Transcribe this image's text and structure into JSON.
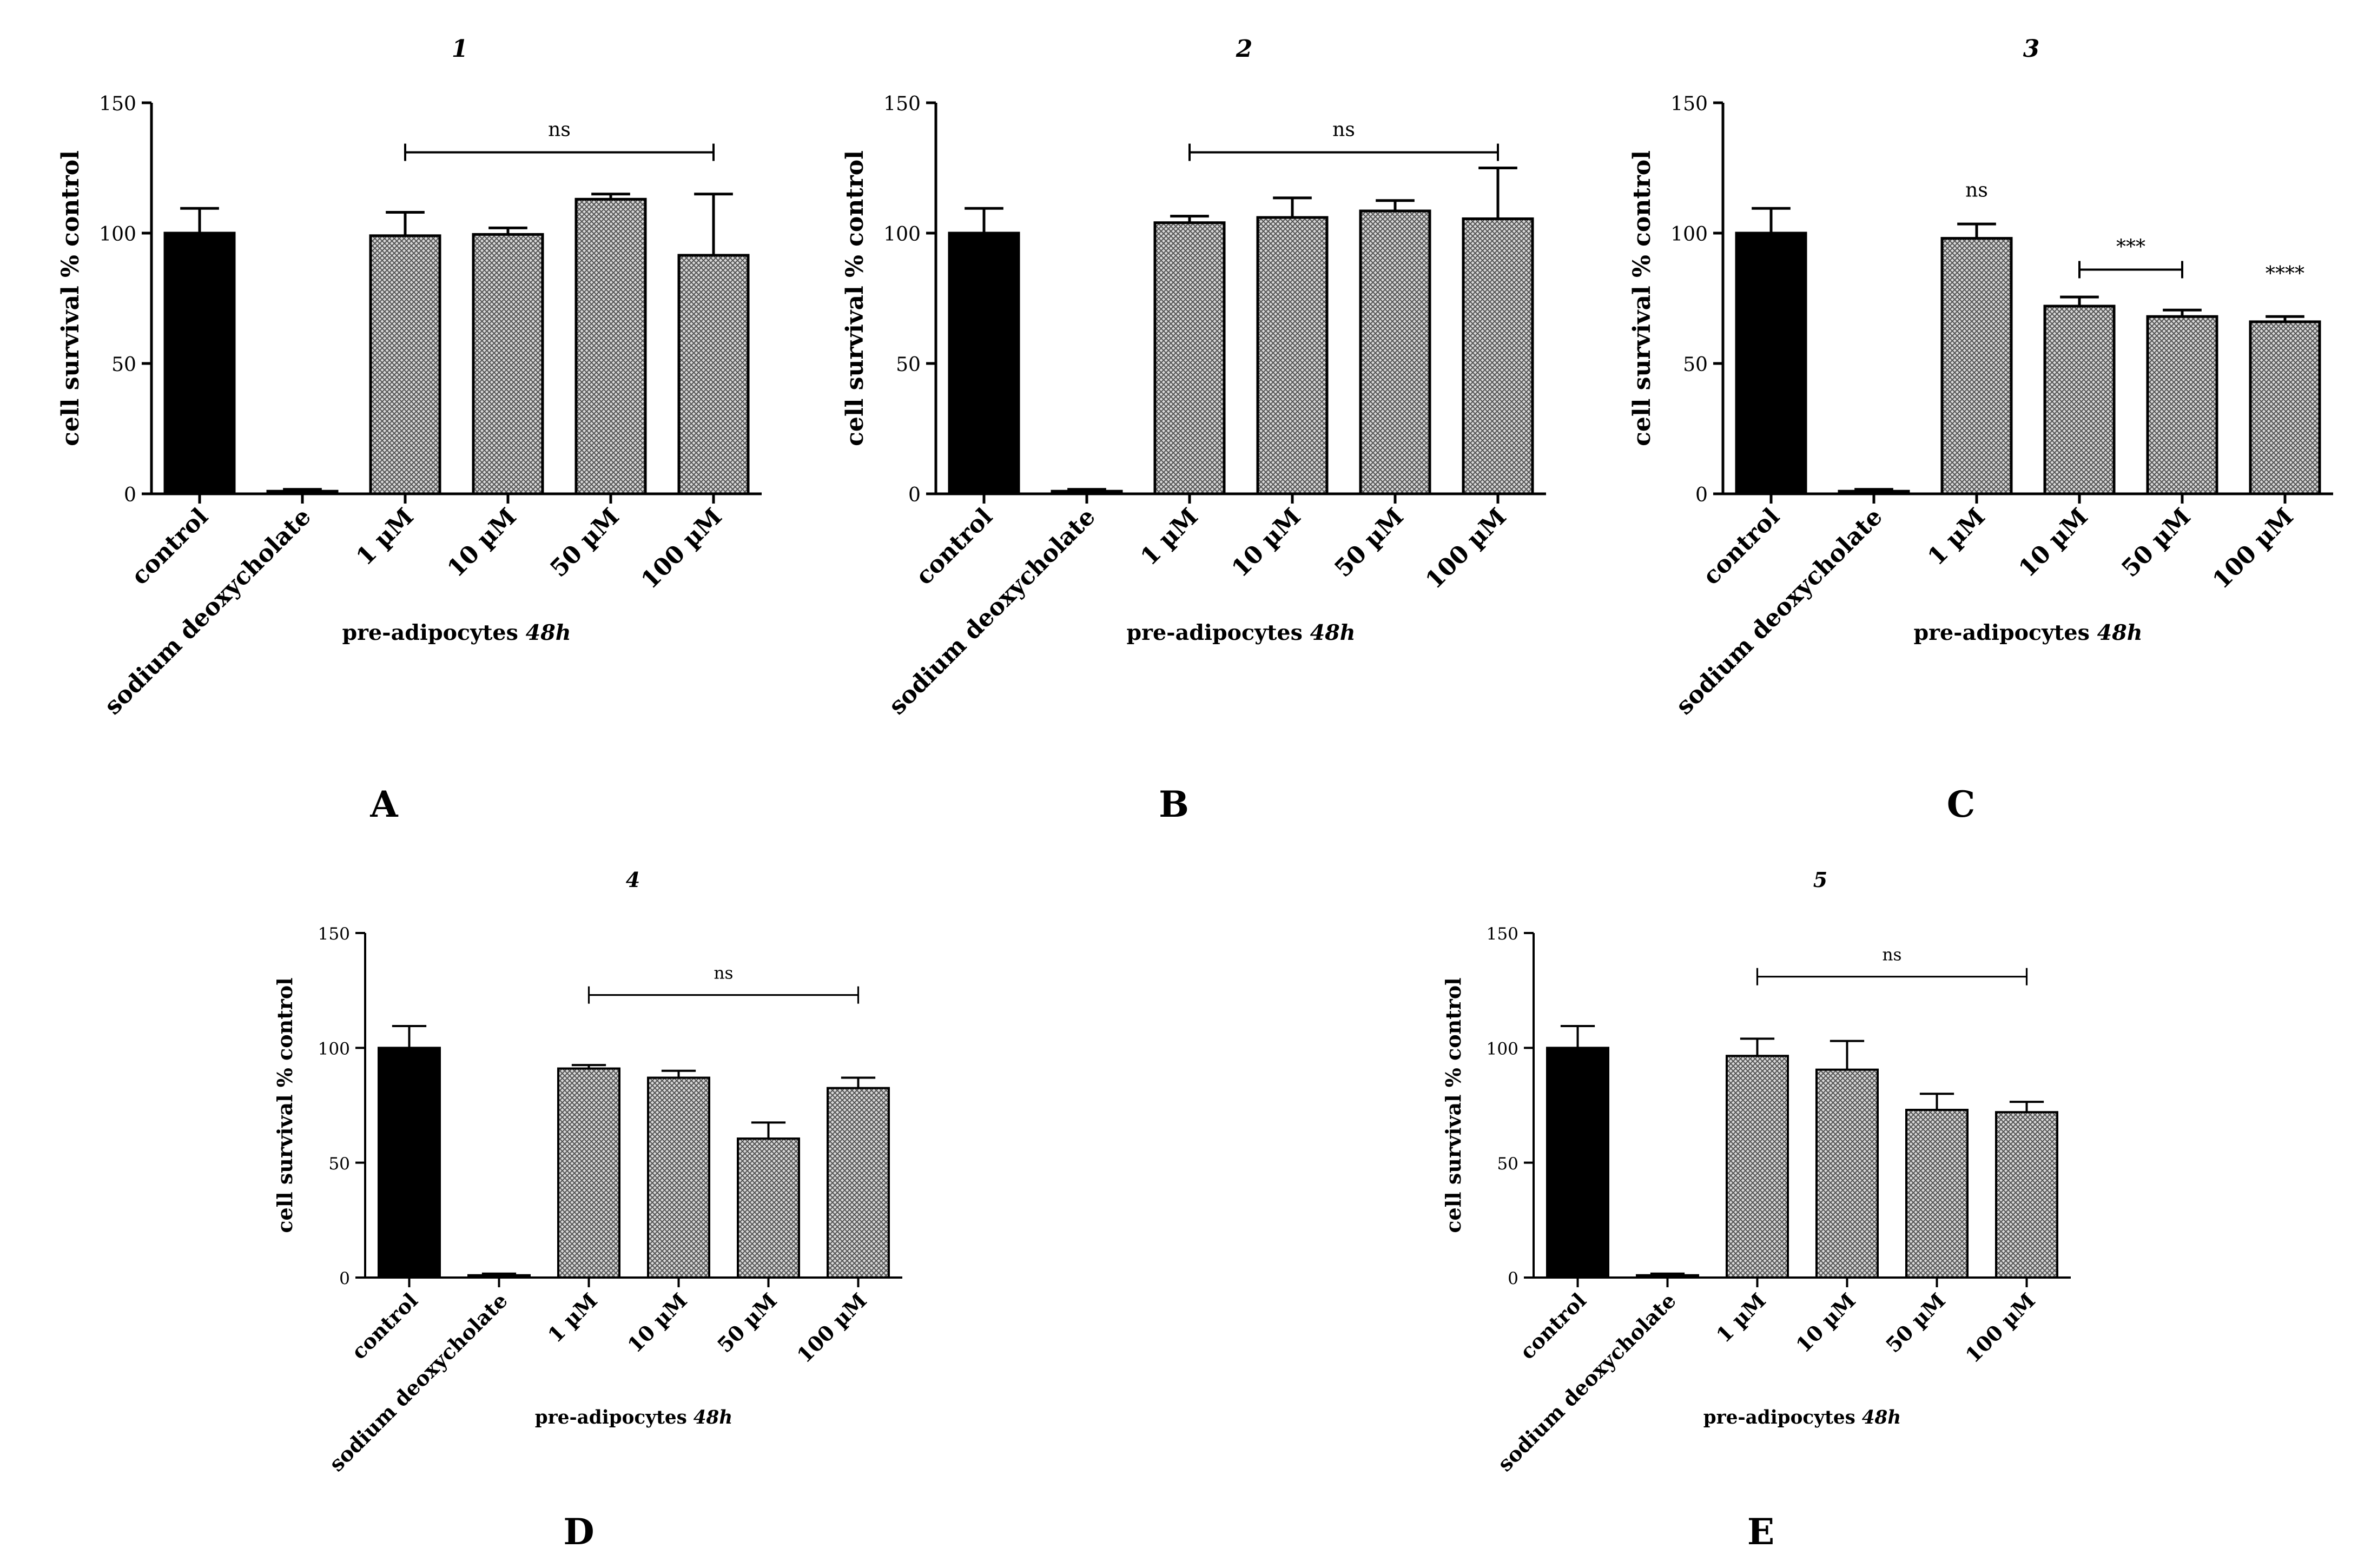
{
  "figure": {
    "panels": [
      {
        "letter": "A",
        "chart_number": "1",
        "chart_data": {
          "type": "bar",
          "title": "1",
          "ylabel": "cell survival % control",
          "xlabel_prefix": "pre-adipocytes",
          "xlabel_emph": "48h",
          "ylim": [
            0,
            150
          ],
          "yticks": [
            0,
            50,
            100,
            150
          ],
          "categories": [
            "control",
            "sodium deoxycholate",
            "1 µM",
            "10 µM",
            "50 µM",
            "100 µM"
          ],
          "values": [
            100,
            1,
            99,
            99.5,
            113,
            91.5
          ],
          "errors": [
            9.5,
            0.7,
            9,
            2.5,
            2,
            23.5
          ],
          "fills": [
            "solid",
            "solid",
            "hatched",
            "hatched",
            "hatched",
            "hatched"
          ],
          "annotations": [
            {
              "kind": "bracket",
              "from": 2,
              "to": 5,
              "y": 131,
              "label": "ns"
            }
          ]
        }
      },
      {
        "letter": "B",
        "chart_number": "2",
        "chart_data": {
          "type": "bar",
          "title": "2",
          "ylabel": "cell survival % control",
          "xlabel_prefix": "pre-adipocytes",
          "xlabel_emph": "48h",
          "ylim": [
            0,
            150
          ],
          "yticks": [
            0,
            50,
            100,
            150
          ],
          "categories": [
            "control",
            "sodium deoxycholate",
            "1 µM",
            "10 µM",
            "50 µM",
            "100 µM"
          ],
          "values": [
            100,
            1,
            104,
            106,
            108.5,
            105.5
          ],
          "errors": [
            9.5,
            0.7,
            2.5,
            7.5,
            4,
            19.5
          ],
          "fills": [
            "solid",
            "solid",
            "hatched",
            "hatched",
            "hatched",
            "hatched"
          ],
          "annotations": [
            {
              "kind": "bracket",
              "from": 2,
              "to": 5,
              "y": 131,
              "label": "ns"
            }
          ]
        }
      },
      {
        "letter": "C",
        "chart_number": "3",
        "chart_data": {
          "type": "bar",
          "title": "3",
          "ylabel": "cell survival % control",
          "xlabel_prefix": "pre-adipocytes",
          "xlabel_emph": "48h",
          "ylim": [
            0,
            150
          ],
          "yticks": [
            0,
            50,
            100,
            150
          ],
          "categories": [
            "control",
            "sodium deoxycholate",
            "1 µM",
            "10 µM",
            "50 µM",
            "100 µM"
          ],
          "values": [
            100,
            1,
            98,
            72,
            68,
            66
          ],
          "errors": [
            9.5,
            0.7,
            5.5,
            3.5,
            2.5,
            2
          ],
          "fills": [
            "solid",
            "solid",
            "hatched",
            "hatched",
            "hatched",
            "hatched"
          ],
          "annotations": [
            {
              "kind": "text",
              "at": 2,
              "y": 114,
              "label": "ns"
            },
            {
              "kind": "bracket",
              "from": 3,
              "to": 4,
              "y": 86,
              "label": "***"
            },
            {
              "kind": "text",
              "at": 5,
              "y": 82,
              "label": "****"
            }
          ]
        }
      },
      {
        "letter": "D",
        "chart_number": "4",
        "chart_data": {
          "type": "bar",
          "title": "4",
          "ylabel": "cell survival % control",
          "xlabel_prefix": "pre-adipocytes",
          "xlabel_emph": "48h",
          "ylim": [
            0,
            150
          ],
          "yticks": [
            0,
            50,
            100,
            150
          ],
          "categories": [
            "control",
            "sodium deoxycholate",
            "1 µM",
            "10 µM",
            "50 µM",
            "100 µM"
          ],
          "values": [
            100,
            1,
            91,
            87,
            60.5,
            82.5
          ],
          "errors": [
            9.5,
            0.7,
            1.5,
            3,
            7,
            4.5
          ],
          "fills": [
            "solid",
            "solid",
            "hatched",
            "hatched",
            "hatched",
            "hatched"
          ],
          "annotations": [
            {
              "kind": "bracket",
              "from": 2,
              "to": 5,
              "y": 123,
              "label": "ns"
            }
          ]
        }
      },
      {
        "letter": "E",
        "chart_number": "5",
        "chart_data": {
          "type": "bar",
          "title": "5",
          "ylabel": "cell survival % control",
          "xlabel_prefix": "pre-adipocytes",
          "xlabel_emph": "48h",
          "ylim": [
            0,
            150
          ],
          "yticks": [
            0,
            50,
            100,
            150
          ],
          "categories": [
            "control",
            "sodium deoxycholate",
            "1 µM",
            "10 µM",
            "50 µM",
            "100 µM"
          ],
          "values": [
            100,
            1,
            96.5,
            90.5,
            73,
            72
          ],
          "errors": [
            9.5,
            0.7,
            7.5,
            12.5,
            7,
            4.5
          ],
          "fills": [
            "solid",
            "solid",
            "hatched",
            "hatched",
            "hatched",
            "hatched"
          ],
          "annotations": [
            {
              "kind": "bracket",
              "from": 2,
              "to": 5,
              "y": 131,
              "label": "ns"
            }
          ]
        }
      }
    ]
  }
}
